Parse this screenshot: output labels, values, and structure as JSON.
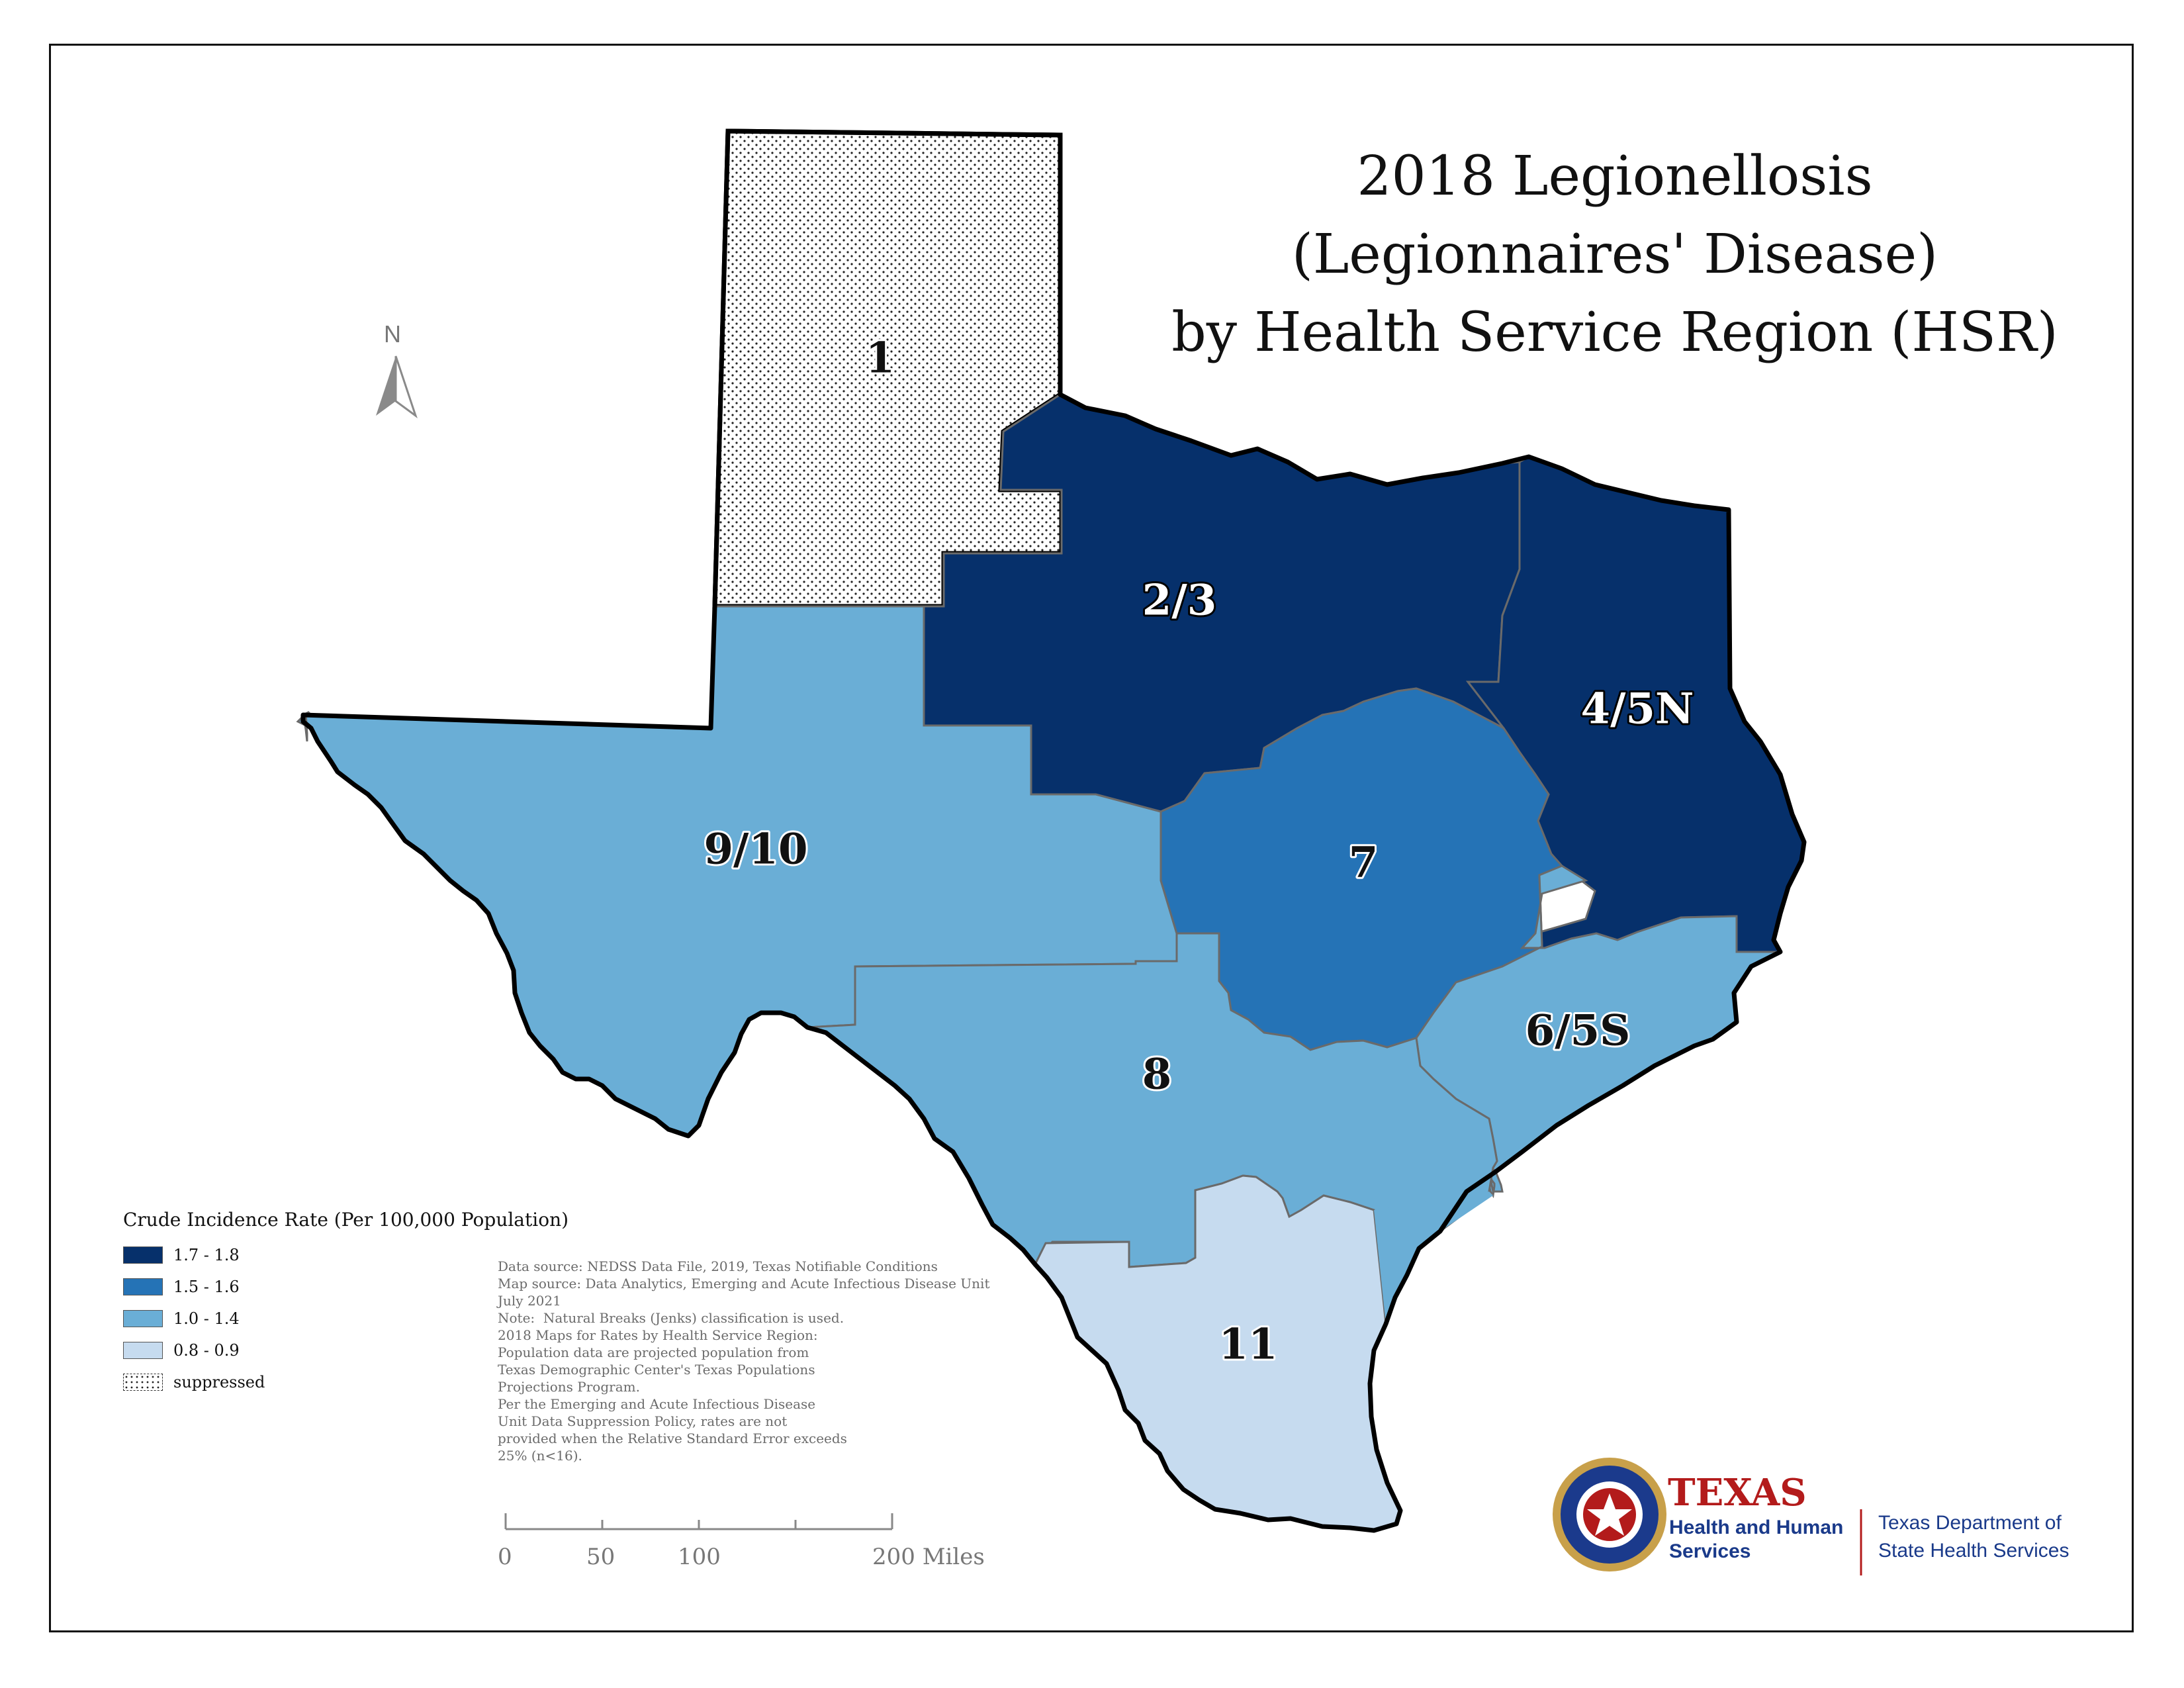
{
  "title": {
    "line1": "2018 Legionellosis",
    "line2": "(Legionnaires' Disease)",
    "line3": "by Health Service Region (HSR)"
  },
  "north_label": "N",
  "colors": {
    "class_1_7_1_8": "#06306b",
    "class_1_5_1_6": "#2573b6",
    "class_1_0_1_4": "#6aaed6",
    "class_0_8_0_9": "#c6dbef",
    "suppressed": "#ffffff",
    "boundary": "#000000",
    "internal_boundary": "#6a6a6a"
  },
  "regions": [
    {
      "id": "1",
      "label": "1",
      "class": "suppressed"
    },
    {
      "id": "2/3",
      "label": "2/3",
      "class": "1.7 - 1.8"
    },
    {
      "id": "4/5N",
      "label": "4/5N",
      "class": "1.7 - 1.8"
    },
    {
      "id": "7",
      "label": "7",
      "class": "1.5 - 1.6"
    },
    {
      "id": "9/10",
      "label": "9/10",
      "class": "1.0 - 1.4"
    },
    {
      "id": "8",
      "label": "8",
      "class": "1.0 - 1.4"
    },
    {
      "id": "6/5S",
      "label": "6/5S",
      "class": "1.0 - 1.4"
    },
    {
      "id": "11",
      "label": "11",
      "class": "0.8 - 0.9"
    }
  ],
  "legend": {
    "title": "Crude Incidence Rate (Per 100,000 Population)",
    "items": [
      {
        "label": "1.7 - 1.8",
        "color": "#06306b"
      },
      {
        "label": "1.5 - 1.6",
        "color": "#2573b6"
      },
      {
        "label": "1.0 - 1.4",
        "color": "#6aaed6"
      },
      {
        "label": "0.8 - 0.9",
        "color": "#c6dbef"
      },
      {
        "label": "suppressed",
        "color": "dotted"
      }
    ]
  },
  "notes": "Data source: NEDSS Data File, 2019, Texas Notifiable Conditions\nMap source: Data Analytics, Emerging and Acute Infectious Disease Unit\nJuly 2021\nNote:  Natural Breaks (Jenks) classification is used.\n2018 Maps for Rates by Health Service Region:\nPopulation data are projected population from\nTexas Demographic Center's Texas Populations\nProjections Program.\nPer the Emerging and Acute Infectious Disease\nUnit Data Suppression Policy, rates are not\nprovided when the Relative Standard Error exceeds\n25% (n<16).",
  "scale_bar": {
    "ticks": [
      "0",
      "50",
      "100",
      "200 Miles"
    ]
  },
  "logos": {
    "hhs_texas": "TEXAS",
    "hhs_sub": "Health and Human\nServices",
    "dshs": "Texas Department of\nState Health Services"
  }
}
